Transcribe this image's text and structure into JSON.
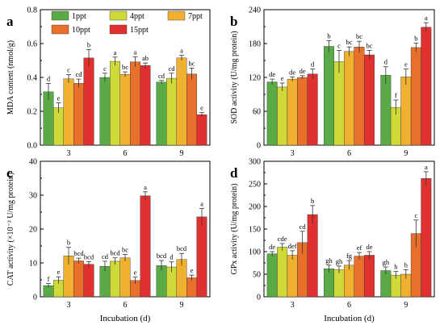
{
  "chart_data": [
    {
      "type": "bar",
      "panel_letter": "a",
      "ylabel": "MDA content (nmol/g)",
      "xlabel": "",
      "categories": [
        "3",
        "6",
        "9"
      ],
      "ylim": [
        0,
        0.8
      ],
      "yticks": [
        "0.0",
        "0.2",
        "0.4",
        "0.6",
        "0.8"
      ],
      "series": [
        {
          "name": "1ppt",
          "values": [
            0.315,
            0.4,
            0.372
          ],
          "errors": [
            0.05,
            0.025,
            0.01
          ],
          "letters": [
            "d",
            "c",
            "cd"
          ]
        },
        {
          "name": "4ppt",
          "values": [
            0.22,
            0.495,
            0.395
          ],
          "errors": [
            0.03,
            0.025,
            0.03
          ],
          "letters": [
            "e",
            "a",
            "cd"
          ]
        },
        {
          "name": "7ppt",
          "values": [
            0.392,
            0.418,
            0.515
          ],
          "errors": [
            0.025,
            0.015,
            0.015
          ],
          "letters": [
            "c",
            "bc",
            "a"
          ]
        },
        {
          "name": "10ppt",
          "values": [
            0.365,
            0.492,
            0.42
          ],
          "errors": [
            0.025,
            0.03,
            0.035
          ],
          "letters": [
            "cd",
            "a",
            "bc"
          ]
        },
        {
          "name": "15ppt",
          "values": [
            0.515,
            0.47,
            0.18
          ],
          "errors": [
            0.05,
            0.015,
            0.012
          ],
          "letters": [
            "b",
            "ab",
            "e"
          ]
        }
      ]
    },
    {
      "type": "bar",
      "panel_letter": "b",
      "ylabel": "SOD activity (U/mg protein)",
      "xlabel": "",
      "categories": [
        "3",
        "6",
        "9"
      ],
      "ylim": [
        0,
        240
      ],
      "yticks": [
        "0",
        "60",
        "120",
        "180",
        "240"
      ],
      "series": [
        {
          "name": "1ppt",
          "values": [
            112,
            175,
            124
          ],
          "errors": [
            5,
            10,
            15
          ],
          "letters": [
            "de",
            "b",
            "d"
          ]
        },
        {
          "name": "4ppt",
          "values": [
            103,
            148,
            67
          ],
          "errors": [
            7,
            20,
            13
          ],
          "letters": [
            "e",
            "c",
            "f"
          ]
        },
        {
          "name": "7ppt",
          "values": [
            117,
            166,
            121
          ],
          "errors": [
            4,
            8,
            14
          ],
          "letters": [
            "de",
            "bc",
            "e"
          ]
        },
        {
          "name": "10ppt",
          "values": [
            120,
            174,
            173
          ],
          "errors": [
            3,
            10,
            8
          ],
          "letters": [
            "de",
            "bc",
            "b"
          ]
        },
        {
          "name": "15ppt",
          "values": [
            126,
            160,
            209
          ],
          "errors": [
            9,
            8,
            8
          ],
          "letters": [
            "d",
            "bc",
            "a"
          ]
        }
      ]
    },
    {
      "type": "bar",
      "panel_letter": "c",
      "ylabel": "CAT activity (×10⁻³ U/mg protein)",
      "xlabel": "Incubation (d)",
      "categories": [
        "3",
        "6",
        "9"
      ],
      "ylim": [
        0,
        40
      ],
      "yticks": [
        "0",
        "10",
        "20",
        "30",
        "40"
      ],
      "series": [
        {
          "name": "1ppt",
          "values": [
            3.3,
            9.0,
            9.2
          ],
          "errors": [
            0.6,
            1.5,
            1.5
          ],
          "letters": [
            "f",
            "cd",
            "bcd"
          ]
        },
        {
          "name": "4ppt",
          "values": [
            4.9,
            10.5,
            8.8
          ],
          "errors": [
            1.0,
            1.0,
            1.5
          ],
          "letters": [
            "e",
            "bcd",
            "d"
          ]
        },
        {
          "name": "7ppt",
          "values": [
            12.1,
            11.5,
            11.0
          ],
          "errors": [
            2.5,
            1.0,
            1.8
          ],
          "letters": [
            "b",
            "bc",
            "bcd"
          ]
        },
        {
          "name": "10ppt",
          "values": [
            10.6,
            4.8,
            5.6
          ],
          "errors": [
            0.8,
            1.0,
            0.8
          ],
          "letters": [
            "bcd",
            "e",
            "e"
          ]
        },
        {
          "name": "15ppt",
          "values": [
            9.6,
            29.8,
            23.6
          ],
          "errors": [
            0.8,
            1.2,
            2.5
          ],
          "letters": [
            "bcd",
            "a",
            "a"
          ]
        }
      ]
    },
    {
      "type": "bar",
      "panel_letter": "d",
      "ylabel": "GPx activity (U/mg protein)",
      "xlabel": "Incubation (d)",
      "categories": [
        "3",
        "6",
        "9"
      ],
      "ylim": [
        0,
        300
      ],
      "yticks": [
        "0",
        "50",
        "100",
        "150",
        "200",
        "250",
        "300"
      ],
      "series": [
        {
          "name": "1ppt",
          "values": [
            95,
            62,
            58
          ],
          "errors": [
            5,
            8,
            8
          ],
          "letters": [
            "de",
            "gh",
            "gh"
          ]
        },
        {
          "name": "4ppt",
          "values": [
            110,
            60,
            48
          ],
          "errors": [
            8,
            8,
            8
          ],
          "letters": [
            "cde",
            "gh",
            "h"
          ]
        },
        {
          "name": "7ppt",
          "values": [
            92,
            70,
            50
          ],
          "errors": [
            10,
            10,
            10
          ],
          "letters": [
            "def",
            "fg",
            "h"
          ]
        },
        {
          "name": "10ppt",
          "values": [
            120,
            90,
            140
          ],
          "errors": [
            25,
            8,
            30
          ],
          "letters": [
            "cd",
            "ef",
            "c"
          ]
        },
        {
          "name": "15ppt",
          "values": [
            182,
            92,
            262
          ],
          "errors": [
            20,
            8,
            15
          ],
          "letters": [
            "b",
            "de",
            "a"
          ]
        }
      ]
    }
  ],
  "legend": [
    {
      "name": "1ppt",
      "color": "#5aaa46"
    },
    {
      "name": "4ppt",
      "color": "#cfd93a"
    },
    {
      "name": "7ppt",
      "color": "#f0b030"
    },
    {
      "name": "10ppt",
      "color": "#e8702a"
    },
    {
      "name": "15ppt",
      "color": "#e03030"
    }
  ],
  "colors": [
    "#5aaa46",
    "#cfd93a",
    "#f0b030",
    "#e8702a",
    "#e03030"
  ]
}
